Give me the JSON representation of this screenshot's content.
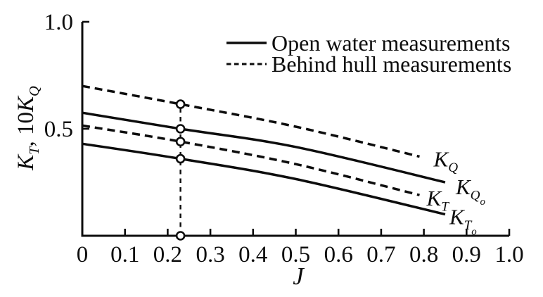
{
  "figure": {
    "background": "#ffffff",
    "ink_color": "#0d0d0d"
  },
  "chart_data": {
    "type": "line",
    "title": "",
    "xlabel": "J",
    "ylabel": "KT, 10KQ",
    "ylabel_parts": [
      {
        "t": "K",
        "lvl": 0,
        "it": true
      },
      {
        "t": "T",
        "lvl": 1,
        "it": true
      },
      {
        "t": ", 10",
        "lvl": 0,
        "it": false
      },
      {
        "t": "K",
        "lvl": 0,
        "it": true
      },
      {
        "t": "Q",
        "lvl": 1,
        "it": true
      }
    ],
    "xlim": [
      0,
      1.0
    ],
    "ylim": [
      0,
      1.0
    ],
    "grid": false,
    "x_ticks": [
      {
        "v": 0.0,
        "label": "0"
      },
      {
        "v": 0.1,
        "label": "0.1"
      },
      {
        "v": 0.2,
        "label": "0.2"
      },
      {
        "v": 0.3,
        "label": "0.3"
      },
      {
        "v": 0.4,
        "label": "0.4"
      },
      {
        "v": 0.5,
        "label": "0.5"
      },
      {
        "v": 0.6,
        "label": "0.6"
      },
      {
        "v": 0.7,
        "label": "0.7"
      },
      {
        "v": 0.8,
        "label": "0.8"
      },
      {
        "v": 0.9,
        "label": "0.9"
      },
      {
        "v": 1.0,
        "label": "1.0"
      }
    ],
    "y_ticks": [
      {
        "v": 0.5,
        "label": "0.5"
      },
      {
        "v": 1.0,
        "label": "1.0"
      }
    ],
    "legend": {
      "position": "top-center",
      "items": [
        {
          "label": "Open water measurements",
          "style": "solid"
        },
        {
          "label": "Behind hull measurements",
          "style": "dashed"
        }
      ]
    },
    "series": [
      {
        "name": "KQ-behind-hull",
        "style": "dashed",
        "label_parts": [
          {
            "t": "K",
            "lvl": 0,
            "it": true
          },
          {
            "t": "Q",
            "lvl": 1,
            "it": true
          }
        ],
        "points": [
          [
            0,
            0.7
          ],
          [
            0.23,
            0.615
          ],
          [
            0.5,
            0.51
          ],
          [
            0.79,
            0.37
          ]
        ]
      },
      {
        "name": "KQ-open-water",
        "style": "solid",
        "label_parts": [
          {
            "t": "K",
            "lvl": 0,
            "it": true
          },
          {
            "t": "Q",
            "lvl": 1,
            "it": true
          },
          {
            "t": "o",
            "lvl": 2,
            "it": true
          }
        ],
        "points": [
          [
            0,
            0.575
          ],
          [
            0.23,
            0.5
          ],
          [
            0.5,
            0.415
          ],
          [
            0.85,
            0.25
          ]
        ]
      },
      {
        "name": "KT-behind-hull",
        "style": "dashed",
        "label_parts": [
          {
            "t": "K",
            "lvl": 0,
            "it": true
          },
          {
            "t": "T",
            "lvl": 1,
            "it": true
          }
        ],
        "points": [
          [
            0,
            0.515
          ],
          [
            0.23,
            0.44
          ],
          [
            0.5,
            0.335
          ],
          [
            0.79,
            0.19
          ]
        ]
      },
      {
        "name": "KT-open-water",
        "style": "solid",
        "label_parts": [
          {
            "t": "K",
            "lvl": 0,
            "it": true
          },
          {
            "t": "T",
            "lvl": 1,
            "it": true
          },
          {
            "t": "o",
            "lvl": 2,
            "it": true
          }
        ],
        "points": [
          [
            0,
            0.43
          ],
          [
            0.23,
            0.36
          ],
          [
            0.5,
            0.265
          ],
          [
            0.85,
            0.1
          ]
        ]
      }
    ],
    "annotations": {
      "vline": {
        "x": 0.23,
        "style": "dashed",
        "from_value": 0,
        "to_value": 0.615
      },
      "markers": [
        [
          0.23,
          0.615
        ],
        [
          0.23,
          0.5
        ],
        [
          0.23,
          0.44
        ],
        [
          0.23,
          0.36
        ],
        [
          0.23,
          0.0
        ]
      ]
    }
  }
}
